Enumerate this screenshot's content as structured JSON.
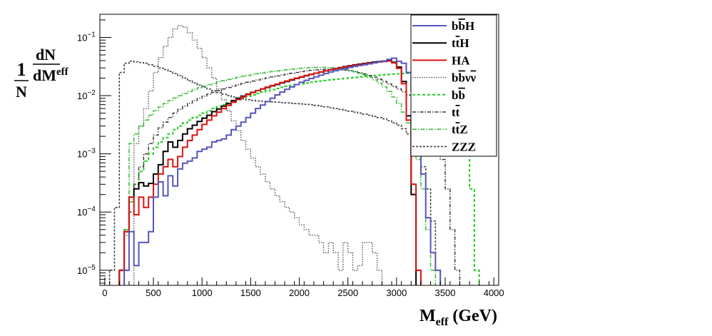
{
  "chart_data": {
    "type": "line",
    "step": true,
    "title": "",
    "xlabel": {
      "main": "M",
      "sub": "eff",
      "unit": " (GeV)"
    },
    "ylabel": {
      "one": "1",
      "N": "N",
      "dN": "dN",
      "dM": "dM",
      "sub": "eff"
    },
    "xlim": [
      -50,
      4050
    ],
    "ylim": [
      5.5e-06,
      0.25
    ],
    "xticks": [
      0,
      500,
      1000,
      1500,
      2000,
      2500,
      3000,
      3500,
      4000
    ],
    "xtick_labels": [
      "0",
      "500",
      "1000",
      "1500",
      "2000",
      "2500",
      "3000",
      "3500",
      "4000"
    ],
    "yticks": [
      1e-05,
      0.0001,
      0.001,
      0.01,
      0.1
    ],
    "ytick_labels": [
      {
        "base": "10",
        "exp": "−5"
      },
      {
        "base": "10",
        "exp": "−4"
      },
      {
        "base": "10",
        "exp": "−3"
      },
      {
        "base": "10",
        "exp": "−2"
      },
      {
        "base": "10",
        "exp": "−1"
      }
    ],
    "bin_width": 50,
    "legend_position": "top-right",
    "series": [
      {
        "name": "bb̄H",
        "label": {
          "base": "bb",
          "bar": 1,
          "tail": "H"
        },
        "color": "#5555bb",
        "dash": "",
        "width": 2,
        "x0": 200,
        "values": [
          1e-05,
          4.6e-05,
          1.2e-05,
          3e-05,
          3e-05,
          4.6e-05,
          0.00018,
          0.00033,
          0.00019,
          0.00042,
          0.00028,
          0.00055,
          0.00069,
          0.00075,
          0.00085,
          0.0011,
          0.0012,
          0.0013,
          0.0016,
          0.0017,
          0.0018,
          0.0021,
          0.0026,
          0.003,
          0.0035,
          0.0042,
          0.005,
          0.006,
          0.0069,
          0.0079,
          0.009,
          0.0103,
          0.0115,
          0.0128,
          0.0141,
          0.0155,
          0.017,
          0.0183,
          0.0197,
          0.021,
          0.0225,
          0.024,
          0.0255,
          0.0268,
          0.028,
          0.0292,
          0.0305,
          0.0318,
          0.033,
          0.034,
          0.0352,
          0.0365,
          0.038,
          0.039,
          0.042,
          0.044,
          0.039,
          0.036,
          0.025,
          0.012,
          0.0019,
          0.00045,
          8e-05,
          2e-05,
          1e-05
        ]
      },
      {
        "name": "tt̄H",
        "label": {
          "base": "tt",
          "bar": 1,
          "tail": "H"
        },
        "color": "#000000",
        "dash": "",
        "width": 2,
        "x0": 150,
        "values": [
          1e-05,
          4.6e-05,
          0.00018,
          0.00025,
          0.00032,
          0.00028,
          0.00031,
          0.00045,
          0.00065,
          0.0011,
          0.0016,
          0.0013,
          0.0017,
          0.0022,
          0.0027,
          0.0031,
          0.0036,
          0.0041,
          0.0046,
          0.0053,
          0.0059,
          0.0066,
          0.0073,
          0.0082,
          0.009,
          0.0098,
          0.0106,
          0.0114,
          0.0122,
          0.013,
          0.0138,
          0.0147,
          0.0155,
          0.0165,
          0.0175,
          0.0186,
          0.0197,
          0.0208,
          0.022,
          0.0231,
          0.0243,
          0.0255,
          0.0267,
          0.0279,
          0.0291,
          0.0303,
          0.0315,
          0.0327,
          0.0338,
          0.0348,
          0.0358,
          0.0368,
          0.0377,
          0.0385,
          0.0392,
          0.0398,
          0.0375,
          0.031,
          0.0175,
          0.0045,
          0.0002
        ]
      },
      {
        "name": "HA",
        "label": {
          "base": "HA",
          "bar": 0,
          "tail": ""
        },
        "color": "#dd1111",
        "dash": "",
        "width": 2,
        "x0": 150,
        "values": [
          1e-05,
          4.6e-05,
          0.00018,
          9e-05,
          0.00018,
          0.00012,
          0.00018,
          0.0003,
          0.00045,
          0.0006,
          0.0008,
          0.0006,
          0.0009,
          0.0013,
          0.0017,
          0.0021,
          0.0026,
          0.0032,
          0.0038,
          0.0045,
          0.0052,
          0.006,
          0.0068,
          0.0077,
          0.0086,
          0.0095,
          0.0104,
          0.0113,
          0.0122,
          0.0131,
          0.014,
          0.0149,
          0.0158,
          0.0168,
          0.0178,
          0.0189,
          0.02,
          0.0211,
          0.0222,
          0.0233,
          0.0244,
          0.0255,
          0.0266,
          0.0277,
          0.0288,
          0.0299,
          0.031,
          0.0321,
          0.0332,
          0.0342,
          0.0352,
          0.0362,
          0.0371,
          0.0379,
          0.0386,
          0.0392,
          0.0365,
          0.0295,
          0.016,
          0.0038,
          0.0003,
          1e-05
        ]
      },
      {
        "name": "bb̄νν̄",
        "label": {
          "base": "bb",
          "bar": 1,
          "tail": "νν",
          "bar2": 1
        },
        "color": "#555555",
        "dash": "1.5,1.8",
        "width": 1.4,
        "x0": 300,
        "values": [
          0.0015,
          0.003,
          0.006,
          0.012,
          0.025,
          0.045,
          0.07,
          0.1,
          0.14,
          0.16,
          0.15,
          0.12,
          0.09,
          0.065,
          0.045,
          0.03,
          0.02,
          0.013,
          0.0085,
          0.0055,
          0.0037,
          0.0025,
          0.0017,
          0.0012,
          0.00085,
          0.0006,
          0.00045,
          0.00033,
          0.00025,
          0.00019,
          0.00015,
          0.00012,
          0.0001,
          8e-05,
          6e-05,
          5e-05,
          4e-05,
          4e-05,
          3e-05,
          2e-05,
          3e-05,
          2e-05,
          1e-05,
          3e-05,
          2e-05,
          1e-05,
          1.2e-05,
          3e-05,
          3e-05,
          2e-05,
          1e-05
        ]
      },
      {
        "name": "bb̄",
        "label": {
          "base": "bb",
          "bar": 1,
          "tail": ""
        },
        "color": "#22cc22",
        "dash": "4,3",
        "width": 2,
        "x0": 150,
        "values": [
          1e-05,
          5e-05,
          0.00015,
          0.0003,
          0.0005,
          0.00075,
          0.001,
          0.0013,
          0.0016,
          0.0019,
          0.0022,
          0.0026,
          0.003,
          0.0034,
          0.0038,
          0.0042,
          0.0046,
          0.005,
          0.0055,
          0.006,
          0.0065,
          0.007,
          0.0075,
          0.008,
          0.0085,
          0.0091,
          0.0097,
          0.0103,
          0.0109,
          0.0115,
          0.0121,
          0.0127,
          0.0133,
          0.0139,
          0.0145,
          0.015,
          0.0155,
          0.016,
          0.0165,
          0.017,
          0.0174,
          0.0178,
          0.0182,
          0.0186,
          0.019,
          0.0194,
          0.0198,
          0.0202,
          0.0206,
          0.021,
          0.0214,
          0.0218,
          0.0222,
          0.0225,
          0.0228,
          0.0231,
          0.0234,
          0.0237,
          0.024,
          0.0242,
          0.0244,
          0.0245,
          0.0246,
          0.0246,
          0.0245,
          0.0242,
          0.0236,
          0.0225,
          0.02,
          0.015,
          0.008,
          0.002,
          0.00025,
          1e-05
        ]
      },
      {
        "name": "tt̄",
        "label": {
          "base": "tt",
          "bar": 1,
          "tail": ""
        },
        "color": "#333333",
        "dash": "5,2,1.5,2",
        "width": 1.4,
        "x0": 150,
        "values": [
          1e-05,
          4e-05,
          0.0001,
          0.0003,
          0.0006,
          0.001,
          0.0015,
          0.0021,
          0.0028,
          0.0035,
          0.0042,
          0.005,
          0.0058,
          0.0066,
          0.0074,
          0.0082,
          0.009,
          0.0098,
          0.0106,
          0.0114,
          0.0122,
          0.013,
          0.0138,
          0.0146,
          0.0154,
          0.0162,
          0.017,
          0.0178,
          0.0186,
          0.0194,
          0.0202,
          0.021,
          0.0218,
          0.0226,
          0.0234,
          0.0242,
          0.025,
          0.0258,
          0.0266,
          0.0272,
          0.0277,
          0.028,
          0.0282,
          0.0283,
          0.0282,
          0.0279,
          0.0274,
          0.0267,
          0.0258,
          0.0248,
          0.0236,
          0.0222,
          0.0207,
          0.0191,
          0.0175,
          0.0159,
          0.0144,
          0.013,
          0.0116,
          0.0102,
          0.0088,
          0.0074,
          0.006,
          0.0046,
          0.0032,
          0.0018,
          0.0008,
          0.00025,
          5e-05,
          1e-05
        ]
      },
      {
        "name": "tt̄Z",
        "label": {
          "base": "tt",
          "bar": 1,
          "tail": "Z"
        },
        "color": "#44bb44",
        "dash": "6,2,1.5,2",
        "width": 1.6,
        "x0": 150,
        "values": [
          1e-05,
          5e-05,
          0.0015,
          0.0022,
          0.003,
          0.0038,
          0.0046,
          0.0055,
          0.0064,
          0.0073,
          0.0082,
          0.0091,
          0.01,
          0.0109,
          0.0118,
          0.0127,
          0.0136,
          0.0145,
          0.0154,
          0.0163,
          0.0172,
          0.0181,
          0.019,
          0.0198,
          0.0206,
          0.0214,
          0.0222,
          0.023,
          0.0238,
          0.0245,
          0.0252,
          0.0259,
          0.0266,
          0.0272,
          0.0278,
          0.0284,
          0.029,
          0.0295,
          0.03,
          0.0303,
          0.0305,
          0.0306,
          0.0305,
          0.0302,
          0.0297,
          0.029,
          0.0281,
          0.027,
          0.0257,
          0.0242,
          0.0225,
          0.0206,
          0.0186,
          0.0164,
          0.0141,
          0.0118,
          0.0095,
          0.0073,
          0.0052,
          0.0034,
          0.0019,
          0.0008,
          0.00025,
          5e-05,
          1e-05
        ]
      },
      {
        "name": "ZZZ",
        "label": {
          "base": "ZZZ",
          "bar": 0,
          "tail": ""
        },
        "color": "#444444",
        "dash": "3,2",
        "width": 1.6,
        "x0": 50,
        "values": [
          1e-05,
          0.00012,
          0.025,
          0.036,
          0.039,
          0.038,
          0.037,
          0.036,
          0.034,
          0.032,
          0.03,
          0.028,
          0.026,
          0.024,
          0.022,
          0.02,
          0.018,
          0.0165,
          0.0152,
          0.014,
          0.013,
          0.0121,
          0.0113,
          0.0106,
          0.01,
          0.0095,
          0.0091,
          0.0088,
          0.0085,
          0.0083,
          0.0081,
          0.008,
          0.0079,
          0.0078,
          0.0077,
          0.0076,
          0.0075,
          0.0074,
          0.0073,
          0.0072,
          0.0071,
          0.007,
          0.0068,
          0.0066,
          0.0064,
          0.0062,
          0.006,
          0.0058,
          0.0056,
          0.0054,
          0.0052,
          0.005,
          0.0048,
          0.0046,
          0.0044,
          0.0042,
          0.004,
          0.0037,
          0.0034,
          0.0031,
          0.0027,
          0.0022,
          0.0017,
          0.0011,
          0.0006,
          0.00025,
          7e-05,
          1e-05
        ]
      }
    ]
  }
}
